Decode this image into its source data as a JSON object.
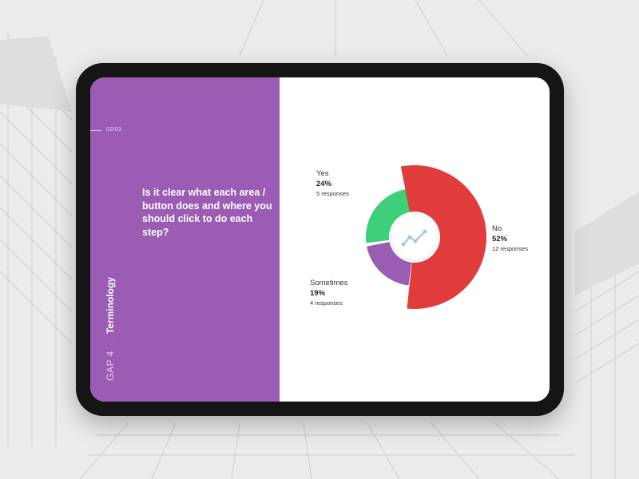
{
  "slide": {
    "progress": "02/03",
    "question": "Is it clear what each area / button does and where you should click to do each step?",
    "gap_label": "GAP 4",
    "separator": ":",
    "topic": "Terminology",
    "accent_color": "#9b5cb4"
  },
  "chart_data": {
    "type": "pie",
    "style": "donut",
    "center_icon": "trend-line-icon",
    "slices": [
      {
        "label": "Yes",
        "percent": "24%",
        "value": 24,
        "responses": "5 responses",
        "color": "#3ecf7a"
      },
      {
        "label": "No",
        "percent": "52%",
        "value": 52,
        "responses": "12 responses",
        "color": "#e03c3c"
      },
      {
        "label": "Sometimes",
        "percent": "19%",
        "value": 19,
        "responses": "4 responses",
        "color": "#9b5cb4"
      }
    ]
  }
}
